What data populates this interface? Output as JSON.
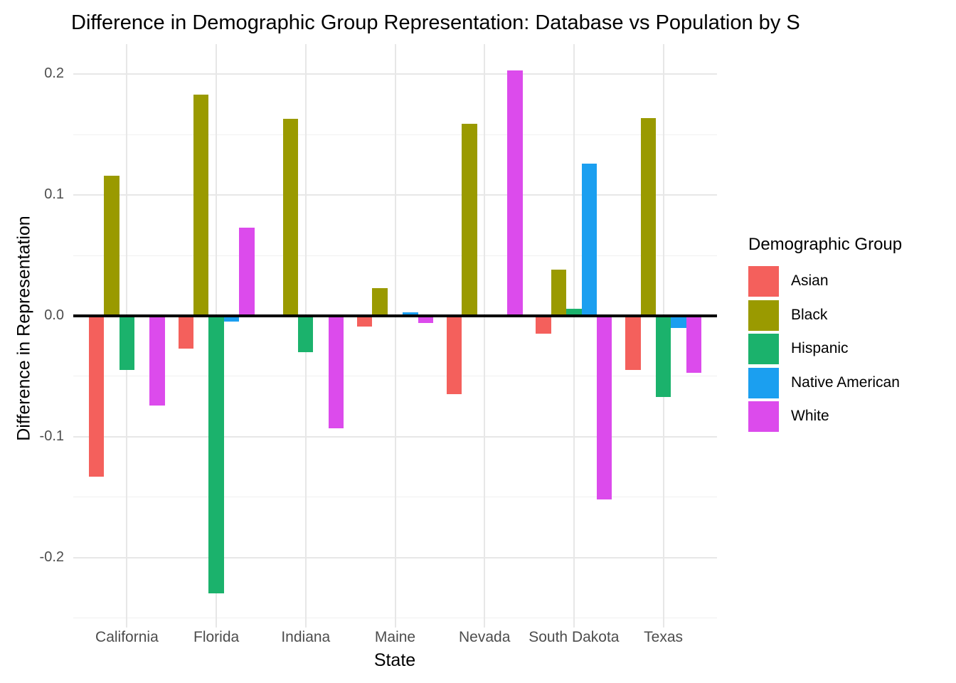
{
  "title": "Difference in Demographic Group Representation: Database vs Population by S",
  "chart_data": {
    "type": "bar",
    "title": "Difference in Demographic Group Representation: Database vs Population by S",
    "xlabel": "State",
    "ylabel": "Difference in Representation",
    "legend_title": "Demographic Group",
    "legend_position": "right",
    "grid": true,
    "zero_line": true,
    "categories": [
      "California",
      "Florida",
      "Indiana",
      "Maine",
      "Nevada",
      "South Dakota",
      "Texas"
    ],
    "series": [
      {
        "name": "Asian",
        "color": "#f4605c",
        "values": [
          -0.133,
          -0.027,
          0.0,
          -0.009,
          -0.065,
          -0.015,
          -0.045
        ]
      },
      {
        "name": "Black",
        "color": "#9a9a00",
        "values": [
          0.116,
          0.183,
          0.163,
          0.023,
          0.159,
          0.038,
          0.164
        ]
      },
      {
        "name": "Hispanic",
        "color": "#1bb26c",
        "values": [
          -0.045,
          -0.23,
          -0.03,
          0.0,
          0.0,
          0.006,
          -0.067
        ]
      },
      {
        "name": "Native American",
        "color": "#1b9ff0",
        "values": [
          0.0,
          -0.005,
          0.0,
          0.003,
          0.0,
          0.126,
          -0.01
        ]
      },
      {
        "name": "White",
        "color": "#dc4bec",
        "values": [
          -0.074,
          0.073,
          -0.093,
          -0.006,
          0.203,
          -0.152,
          -0.047
        ]
      }
    ],
    "yticks": [
      0.2,
      0.1,
      0.0,
      -0.1,
      -0.2
    ],
    "ytick_labels": [
      "0.2",
      "0.1",
      "0.0",
      "-0.1",
      "-0.2"
    ],
    "yminor": [
      0.15,
      0.05,
      -0.05,
      -0.15,
      -0.25
    ],
    "ylim": [
      -0.258,
      0.225
    ]
  }
}
